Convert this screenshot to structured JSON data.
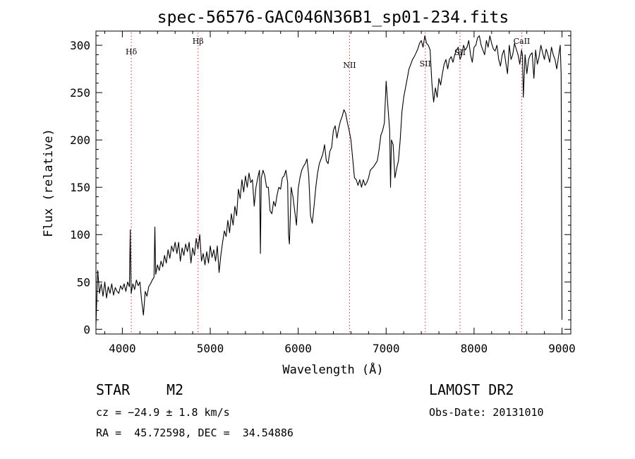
{
  "chart_data": {
    "type": "line",
    "title": "spec-56576-GAC046N36B1_sp01-234.fits",
    "xlabel": "Wavelength (Å)",
    "ylabel": "Flux (relative)",
    "xlim": [
      3700,
      9100
    ],
    "ylim": [
      -5,
      315
    ],
    "xticks": [
      4000,
      5000,
      6000,
      7000,
      8000,
      9000
    ],
    "yticks": [
      0,
      50,
      100,
      150,
      200,
      250,
      300
    ],
    "grid": false,
    "line_color": "#000000",
    "marker_color": "#cc3333",
    "lines": [
      {
        "label": "Hδ",
        "x": 4102
      },
      {
        "label": "Hβ",
        "x": 4861
      },
      {
        "label": "NII",
        "x": 6584
      },
      {
        "label": "SII",
        "x": 7445
      },
      {
        "label": "SII",
        "x": 7840
      },
      {
        "label": "CaII",
        "x": 8542
      }
    ],
    "series": [
      {
        "x": [
          3700,
          3720,
          3740,
          3760,
          3780,
          3800,
          3820,
          3840,
          3860,
          3880,
          3900,
          3920,
          3940,
          3960,
          3980,
          4000,
          4020,
          4040,
          4060,
          4080,
          4090,
          4100,
          4120,
          4140,
          4160,
          4180,
          4200,
          4220,
          4240,
          4260,
          4280,
          4300,
          4320,
          4340,
          4360,
          4370,
          4380,
          4400,
          4420,
          4440,
          4460,
          4480,
          4500,
          4520,
          4540,
          4560,
          4580,
          4600,
          4620,
          4640,
          4660,
          4680,
          4700,
          4720,
          4740,
          4760,
          4780,
          4800,
          4820,
          4840,
          4860,
          4880,
          4900,
          4920,
          4940,
          4960,
          4980,
          5000,
          5020,
          5040,
          5060,
          5080,
          5100,
          5120,
          5140,
          5160,
          5180,
          5200,
          5220,
          5240,
          5260,
          5280,
          5300,
          5320,
          5340,
          5360,
          5380,
          5400,
          5420,
          5440,
          5460,
          5480,
          5500,
          5520,
          5540,
          5560,
          5570,
          5580,
          5600,
          5620,
          5640,
          5660,
          5680,
          5700,
          5720,
          5740,
          5760,
          5780,
          5800,
          5820,
          5840,
          5860,
          5880,
          5890,
          5900,
          5920,
          5940,
          5960,
          5980,
          6000,
          6020,
          6040,
          6060,
          6080,
          6100,
          6120,
          6140,
          6160,
          6180,
          6200,
          6220,
          6240,
          6260,
          6280,
          6300,
          6320,
          6340,
          6360,
          6380,
          6400,
          6420,
          6440,
          6460,
          6480,
          6500,
          6520,
          6540,
          6560,
          6580,
          6600,
          6620,
          6640,
          6660,
          6680,
          6700,
          6720,
          6740,
          6760,
          6780,
          6800,
          6820,
          6840,
          6860,
          6880,
          6900,
          6920,
          6940,
          6960,
          6980,
          7000,
          7020,
          7040,
          7050,
          7060,
          7080,
          7100,
          7120,
          7140,
          7160,
          7180,
          7200,
          7220,
          7240,
          7260,
          7280,
          7300,
          7320,
          7340,
          7360,
          7380,
          7400,
          7420,
          7440,
          7460,
          7480,
          7500,
          7520,
          7540,
          7560,
          7580,
          7600,
          7620,
          7640,
          7660,
          7680,
          7700,
          7720,
          7740,
          7760,
          7780,
          7800,
          7820,
          7840,
          7860,
          7880,
          7900,
          7920,
          7940,
          7960,
          7980,
          8000,
          8020,
          8040,
          8060,
          8080,
          8100,
          8120,
          8140,
          8160,
          8180,
          8200,
          8220,
          8240,
          8260,
          8280,
          8300,
          8320,
          8340,
          8360,
          8380,
          8400,
          8420,
          8440,
          8460,
          8480,
          8500,
          8520,
          8540,
          8550,
          8560,
          8580,
          8600,
          8620,
          8640,
          8660,
          8680,
          8700,
          8720,
          8740,
          8760,
          8780,
          8800,
          8820,
          8840,
          8860,
          8880,
          8900,
          8920,
          8940,
          8960,
          8980,
          8990,
          9000
        ],
        "y": [
          5,
          62,
          38,
          48,
          35,
          50,
          33,
          45,
          38,
          48,
          36,
          44,
          40,
          38,
          46,
          42,
          48,
          40,
          50,
          45,
          105,
          38,
          48,
          42,
          52,
          46,
          50,
          30,
          15,
          40,
          35,
          45,
          48,
          52,
          55,
          108,
          58,
          68,
          62,
          72,
          66,
          78,
          70,
          84,
          75,
          88,
          82,
          92,
          80,
          92,
          72,
          86,
          78,
          90,
          82,
          92,
          70,
          86,
          78,
          96,
          85,
          100,
          72,
          80,
          68,
          82,
          70,
          88,
          76,
          84,
          72,
          88,
          60,
          78,
          92,
          104,
          98,
          115,
          102,
          122,
          110,
          130,
          120,
          148,
          138,
          158,
          145,
          162,
          150,
          165,
          155,
          158,
          130,
          150,
          160,
          168,
          80,
          160,
          168,
          162,
          150,
          150,
          125,
          122,
          135,
          130,
          142,
          150,
          148,
          160,
          162,
          168,
          155,
          100,
          90,
          150,
          140,
          125,
          110,
          148,
          160,
          168,
          172,
          175,
          180,
          162,
          120,
          112,
          130,
          150,
          165,
          175,
          180,
          185,
          195,
          178,
          175,
          188,
          192,
          210,
          215,
          202,
          212,
          220,
          225,
          232,
          228,
          218,
          210,
          200,
          180,
          160,
          158,
          152,
          158,
          150,
          158,
          152,
          155,
          160,
          168,
          170,
          172,
          175,
          178,
          190,
          205,
          210,
          218,
          262,
          235,
          210,
          150,
          200,
          195,
          160,
          170,
          178,
          200,
          230,
          245,
          255,
          265,
          275,
          280,
          285,
          288,
          292,
          296,
          302,
          305,
          298,
          310,
          302,
          300,
          295,
          260,
          240,
          255,
          245,
          265,
          258,
          270,
          280,
          285,
          275,
          285,
          288,
          282,
          290,
          295,
          298,
          285,
          290,
          300,
          295,
          298,
          305,
          290,
          282,
          298,
          300,
          308,
          310,
          300,
          295,
          290,
          305,
          298,
          310,
          302,
          296,
          294,
          300,
          285,
          278,
          290,
          295,
          282,
          270,
          300,
          285,
          290,
          302,
          296,
          290,
          280,
          295,
          290,
          245,
          290,
          270,
          285,
          290,
          292,
          265,
          295,
          280,
          288,
          300,
          292,
          285,
          296,
          290,
          282,
          298,
          290,
          285,
          275,
          288,
          300,
          270,
          10
        ]
      }
    ]
  },
  "info": {
    "object_type": "STAR",
    "subclass": "M2",
    "cz": "cz = −24.9 ± 1.8 km/s",
    "coords": "RA =  45.72598, DEC =  34.54886",
    "survey": "LAMOST DR2",
    "obs_date": "Obs-Date: 20131010"
  }
}
